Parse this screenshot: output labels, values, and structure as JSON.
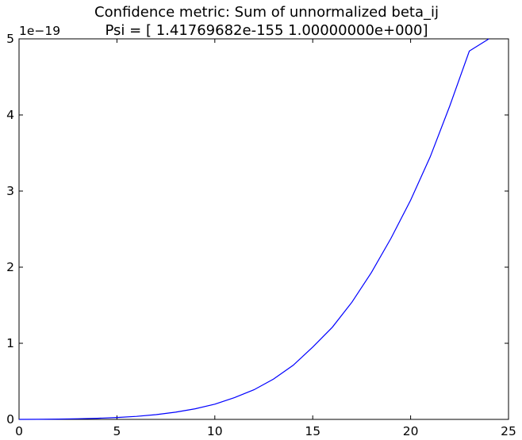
{
  "chart_data": {
    "type": "line",
    "title": "Confidence metric: Sum of unnormalized beta_ij",
    "subtitle": "Psi = [  1.41769682e-155   1.00000000e+000]",
    "xlabel": "",
    "ylabel": "",
    "xlim": [
      0,
      25
    ],
    "ylim": [
      0,
      5
    ],
    "y_offset_label": "1e−19",
    "x_ticks": [
      "0",
      "5",
      "10",
      "15",
      "20",
      "25"
    ],
    "y_ticks": [
      "0",
      "1",
      "2",
      "3",
      "4",
      "5"
    ],
    "grid": false,
    "legend": "none",
    "line_color": "#0000ff",
    "series": [
      {
        "x": [
          0,
          1,
          2,
          3,
          4,
          5,
          6,
          7,
          8,
          9,
          10,
          11,
          12,
          13,
          14,
          15,
          16,
          17,
          18,
          19,
          20,
          21,
          22,
          23,
          24
        ],
        "values": [
          0.0001,
          0.001,
          0.004,
          0.008,
          0.015,
          0.025,
          0.04,
          0.062,
          0.095,
          0.14,
          0.2,
          0.285,
          0.39,
          0.53,
          0.71,
          0.95,
          1.21,
          1.54,
          1.93,
          2.38,
          2.88,
          3.45,
          4.12,
          4.84,
          5.0
        ]
      }
    ]
  }
}
